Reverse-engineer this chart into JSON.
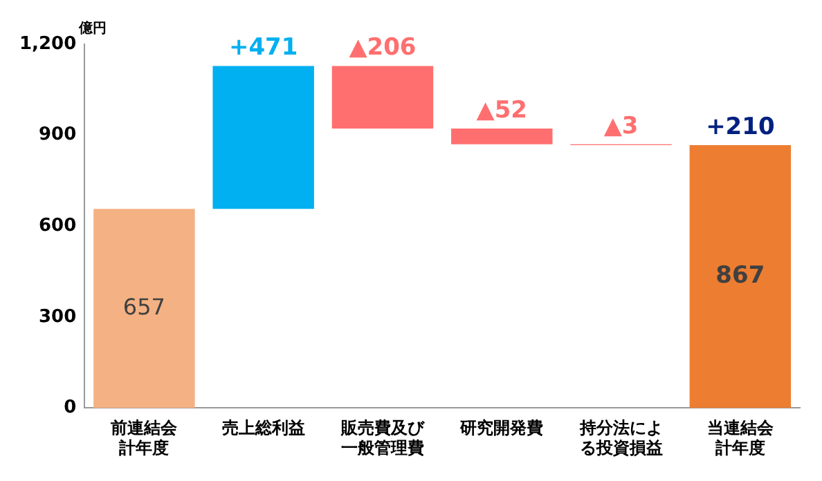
{
  "chart_data": {
    "type": "bar",
    "ylabel": "億円",
    "categories": [
      "前連結会計年度",
      "売上総利益",
      "販売費及び一般管理費",
      "研究開発費",
      "持分法による投資損益",
      "当連結会計年度"
    ],
    "base": [
      0,
      657,
      1128,
      922,
      870,
      0
    ],
    "values": [
      657,
      471,
      -206,
      -52,
      -3,
      867
    ],
    "value_labels": [
      "657",
      "+471",
      "▲206",
      "▲52",
      "▲3",
      "867"
    ],
    "colors": [
      "#f4b183",
      "#00b0f0",
      "#ff6f6f",
      "#ff6f6f",
      "#ff6f6f",
      "#ed7d31"
    ],
    "annotations": [
      {
        "text": "+210",
        "x": "当連結会計年度",
        "y": 867
      }
    ],
    "ylim": [
      0,
      1200
    ],
    "yticks": [
      0,
      300,
      600,
      900,
      {
        "value": 1200,
        "label": "1,200"
      }
    ],
    "grid": false,
    "legend": false
  }
}
